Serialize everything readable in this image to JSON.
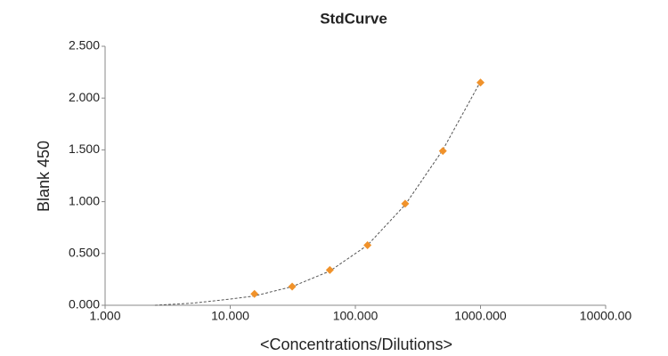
{
  "chart_data": {
    "type": "scatter",
    "title": "StdCurve",
    "x_label": "<Concentrations/Dilutions>",
    "y_label": "Blank 450",
    "x_scale": "log",
    "xlim": [
      1,
      10000
    ],
    "xticks": [
      {
        "value": 1,
        "label": "1.000"
      },
      {
        "value": 10,
        "label": "10.000"
      },
      {
        "value": 100,
        "label": "100.000"
      },
      {
        "value": 1000,
        "label": "1000.000"
      },
      {
        "value": 10000,
        "label": "10000.00"
      }
    ],
    "ylim": [
      0,
      2.5
    ],
    "yticks": [
      {
        "value": 0,
        "label": "0.000"
      },
      {
        "value": 0.5,
        "label": "0.500"
      },
      {
        "value": 1,
        "label": "1.000"
      },
      {
        "value": 1.5,
        "label": "1.500"
      },
      {
        "value": 2,
        "label": "2.000"
      },
      {
        "value": 2.5,
        "label": "2.500"
      }
    ],
    "grid": false,
    "series": [
      {
        "style": "markers",
        "color": "#f0922b",
        "x": [
          15.625,
          31.25,
          62.5,
          125,
          250,
          500,
          1000
        ],
        "values": [
          0.11,
          0.18,
          0.34,
          0.58,
          0.98,
          1.49,
          2.15
        ]
      },
      {
        "style": "dashed-line",
        "color": "#555555",
        "x": [
          2.5,
          5,
          10,
          15.625,
          31.25,
          62.5,
          125,
          250,
          500,
          1000
        ],
        "values": [
          0.0,
          0.02,
          0.06,
          0.09,
          0.18,
          0.33,
          0.58,
          0.97,
          1.5,
          2.16
        ]
      }
    ]
  }
}
